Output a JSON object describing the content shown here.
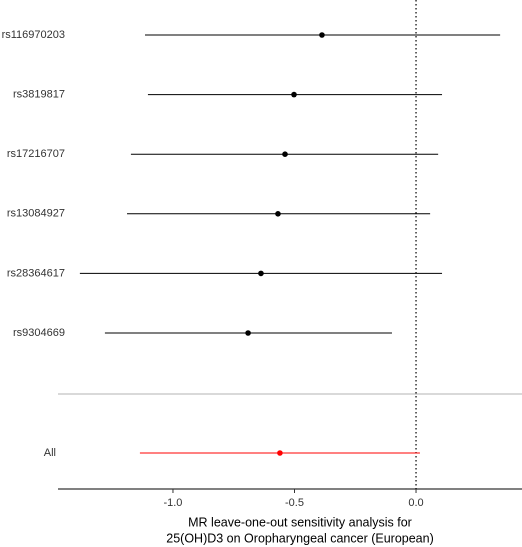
{
  "chart_data": {
    "type": "forest",
    "categories": [
      "rs116970203",
      "rs3819817",
      "rs17216707",
      "rs13084927",
      "rs28364617",
      "rs9304669",
      "All"
    ],
    "values": [
      -0.387,
      -0.502,
      -0.539,
      -0.568,
      -0.638,
      -0.691,
      -0.56
    ],
    "lower": [
      -1.115,
      -1.103,
      -1.173,
      -1.189,
      -1.383,
      -1.28,
      -1.136
    ],
    "upper": [
      0.346,
      0.107,
      0.091,
      0.058,
      0.107,
      -0.099,
      0.016
    ],
    "colors": [
      "#000000",
      "#000000",
      "#000000",
      "#000000",
      "#000000",
      "#000000",
      "#ff0000"
    ],
    "reference_line": 0,
    "xlim": [
      -1.473,
      0.436
    ],
    "xticks": [
      {
        "value": -1,
        "label": "-1.0"
      },
      {
        "value": -0.5,
        "label": "-0.5"
      },
      {
        "value": 0,
        "label": "0.0"
      }
    ],
    "xlabel": [
      "MR leave-one-out sensitivity analysis for",
      "25(OH)D3 on Oropharyngeal cancer (European)"
    ]
  }
}
